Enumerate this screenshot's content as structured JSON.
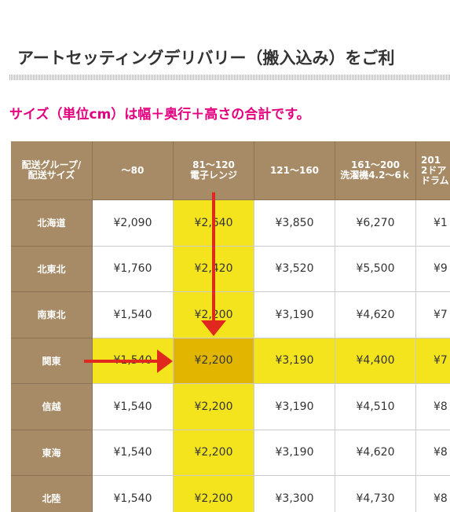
{
  "title": "アートセッティングデリバリー（搬入込み）をご利",
  "subtitle": "サイズ（単位cm）は幅＋奥行＋高さの合計です。",
  "table": {
    "header": [
      [
        "配送グループ/",
        "配送サイズ"
      ],
      [
        "～80"
      ],
      [
        "81～120",
        "電子レンジ"
      ],
      [
        "121～160"
      ],
      [
        "161～200",
        "洗濯機4.2～6ｋ"
      ],
      [
        "201",
        "2ドア",
        "ドラム"
      ]
    ],
    "rows": [
      [
        "北海道",
        "¥2,090",
        "¥2,640",
        "¥3,850",
        "¥6,270",
        "¥1"
      ],
      [
        "北東北",
        "¥1,760",
        "¥2,420",
        "¥3,520",
        "¥5,500",
        "¥9"
      ],
      [
        "南東北",
        "¥1,540",
        "¥2,200",
        "¥3,190",
        "¥4,620",
        "¥7"
      ],
      [
        "関東",
        "¥1,540",
        "¥2,200",
        "¥3,190",
        "¥4,400",
        "¥7"
      ],
      [
        "信越",
        "¥1,540",
        "¥2,200",
        "¥3,190",
        "¥4,510",
        "¥8"
      ],
      [
        "東海",
        "¥1,540",
        "¥2,200",
        "¥3,190",
        "¥4,620",
        "¥8"
      ],
      [
        "北陸",
        "¥1,540",
        "¥2,200",
        "¥3,300",
        "¥4,730",
        "¥8"
      ]
    ]
  }
}
